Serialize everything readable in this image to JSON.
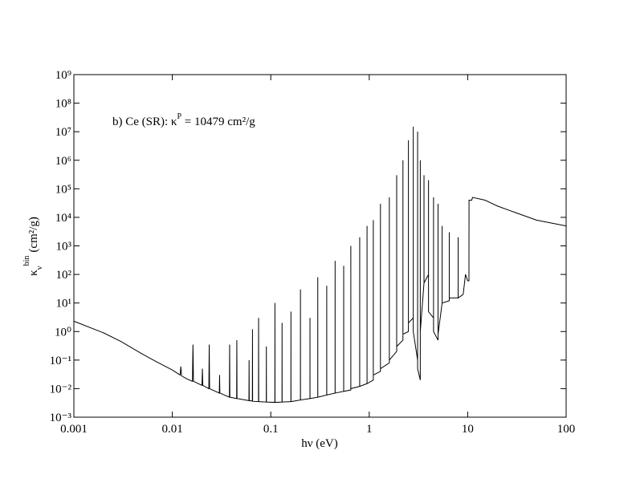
{
  "chart_data": {
    "type": "line",
    "xlabel": "hν (eV)",
    "ylabel": {
      "symbol": "κ",
      "sub": "ν",
      "sup": "bin",
      "unit": "(cm²/g)"
    },
    "annotation": {
      "text": "b) Ce (SR): κ",
      "sup": "P",
      "rest": " = 10479 cm²/g"
    },
    "xlog": true,
    "ylog": true,
    "xlim": [
      0.001,
      100
    ],
    "ylim": [
      0.001,
      1000000000
    ],
    "xticks": [
      0.001,
      0.01,
      0.1,
      1,
      10,
      100
    ],
    "yticks": [
      {
        "value": 0.001,
        "label": "10⁻³"
      },
      {
        "value": 0.01,
        "label": "10⁻²"
      },
      {
        "value": 0.1,
        "label": "10⁻¹"
      },
      {
        "value": 1,
        "label": "10⁰"
      },
      {
        "value": 10,
        "label": "10¹"
      },
      {
        "value": 100,
        "label": "10²"
      },
      {
        "value": 1000,
        "label": "10³"
      },
      {
        "value": 10000,
        "label": "10⁴"
      },
      {
        "value": 100000,
        "label": "10⁵"
      },
      {
        "value": 1000000,
        "label": "10⁶"
      },
      {
        "value": 10000000,
        "label": "10⁷"
      },
      {
        "value": 100000000,
        "label": "10⁸"
      },
      {
        "value": 1000000000,
        "label": "10⁹"
      }
    ],
    "series": [
      {
        "color": "#000000",
        "x": [
          0.001,
          0.002,
          0.003,
          0.005,
          0.007,
          0.01,
          0.012,
          0.0122,
          0.0124,
          0.014,
          0.016,
          0.0162,
          0.0164,
          0.02,
          0.0202,
          0.0204,
          0.0235,
          0.0237,
          0.0239,
          0.03,
          0.0302,
          0.0304,
          0.038,
          0.0382,
          0.0384,
          0.045,
          0.0452,
          0.0454,
          0.06,
          0.0602,
          0.0604,
          0.065,
          0.0652,
          0.0654,
          0.075,
          0.0752,
          0.0754,
          0.09,
          0.0902,
          0.0904,
          0.11,
          0.1102,
          0.1104,
          0.13,
          0.1302,
          0.1304,
          0.16,
          0.1602,
          0.1604,
          0.2,
          0.2002,
          0.2004,
          0.25,
          0.2502,
          0.2504,
          0.3,
          0.3002,
          0.3004,
          0.37,
          0.3702,
          0.3704,
          0.45,
          0.4502,
          0.4504,
          0.55,
          0.5502,
          0.5504,
          0.65,
          0.6502,
          0.6504,
          0.8,
          0.8002,
          0.8004,
          0.95,
          0.9502,
          0.9504,
          1.1,
          1.1002,
          1.1004,
          1.3,
          1.3002,
          1.3004,
          1.6,
          1.6002,
          1.6004,
          1.9,
          1.9002,
          1.9004,
          2.2,
          2.2002,
          2.2004,
          2.5,
          2.5002,
          2.5004,
          2.8,
          2.8002,
          2.8004,
          3.1,
          3.1002,
          3.1004,
          3.3,
          3.3002,
          3.3004,
          3.6,
          3.6002,
          3.6004,
          4,
          4.0002,
          4.0004,
          4.5,
          4.5002,
          4.5004,
          5,
          5.0002,
          5.0004,
          5.5,
          5.5002,
          5.5004,
          6.5,
          6.5002,
          6.5004,
          8,
          8.0002,
          8.0004,
          9,
          9.5,
          10,
          10.3,
          10.32,
          11,
          11.2,
          15,
          20,
          30,
          50,
          100
        ],
        "values": [
          2.3,
          0.9,
          0.45,
          0.16,
          0.085,
          0.045,
          0.03,
          0.06,
          0.028,
          0.022,
          0.018,
          0.35,
          0.018,
          0.013,
          0.05,
          0.013,
          0.01,
          0.35,
          0.01,
          0.007,
          0.03,
          0.007,
          0.005,
          0.35,
          0.005,
          0.0045,
          0.5,
          0.0045,
          0.0038,
          0.1,
          0.0038,
          0.0037,
          1.2,
          0.0036,
          0.0035,
          3,
          0.0035,
          0.0034,
          0.3,
          0.0034,
          0.0033,
          10,
          0.0033,
          0.0034,
          2,
          0.0034,
          0.0035,
          5,
          0.0035,
          0.004,
          30,
          0.004,
          0.0045,
          3,
          0.0045,
          0.005,
          80,
          0.005,
          0.006,
          40,
          0.006,
          0.007,
          300,
          0.007,
          0.008,
          200,
          0.008,
          0.009,
          1000,
          0.01,
          0.012,
          2000,
          0.012,
          0.015,
          5000,
          0.015,
          0.02,
          8000,
          0.03,
          0.04,
          30000,
          0.05,
          0.08,
          50000,
          0.1,
          0.2,
          300000,
          0.3,
          0.5,
          1000000,
          0.8,
          1,
          5000000,
          2,
          3,
          15000000,
          1,
          0.1,
          10000000,
          0.05,
          0.02,
          1000000,
          1,
          50,
          300000,
          50,
          100,
          200000,
          5,
          3,
          50000,
          1,
          0.5,
          30000,
          0.8,
          10,
          5000,
          10,
          12,
          3000,
          15,
          15,
          2000,
          15,
          20,
          100,
          60,
          60,
          40000,
          40000,
          50000,
          40000,
          25000,
          15000,
          8000,
          5000
        ]
      }
    ]
  }
}
